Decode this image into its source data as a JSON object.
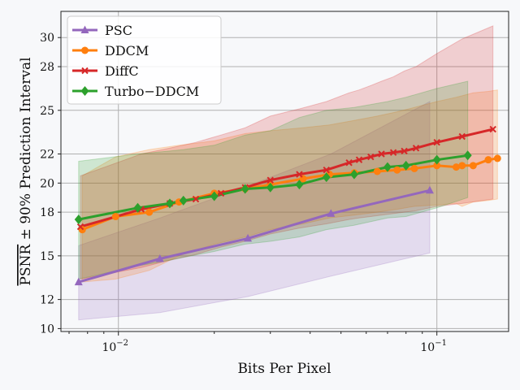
{
  "chart_data": {
    "type": "line",
    "title": "",
    "xlabel": "Bits Per Pixel",
    "ylabel": "PSNR ± 90% Prediction Interval",
    "ylabel_overlined_part": "PSNR",
    "ylabel_rest": " ± 90% Prediction Interval",
    "xscale": "log",
    "xlim": [
      0.0066,
      0.168
    ],
    "ylim": [
      9.8,
      31.8
    ],
    "x_ticks": [
      {
        "value": 0.01,
        "base": "10",
        "exp": "−2"
      },
      {
        "value": 0.1,
        "base": "10",
        "exp": "−1"
      }
    ],
    "y_ticks": [
      10,
      12,
      15,
      18,
      20,
      22,
      25,
      28,
      30
    ],
    "grid": true,
    "legend_position": "top-left",
    "series": [
      {
        "name": "PSC",
        "color": "#9467bd",
        "marker": "triangle",
        "x": [
          0.0075,
          0.0135,
          0.0255,
          0.0465,
          0.095
        ],
        "y": [
          13.2,
          14.8,
          16.2,
          17.9,
          19.5
        ],
        "lower": [
          10.6,
          11.1,
          12.2,
          13.6,
          15.2
        ],
        "upper": [
          15.7,
          17.6,
          19.8,
          22.0,
          25.6
        ]
      },
      {
        "name": "DDCM",
        "color": "#ff7f0e",
        "marker": "circle",
        "x": [
          0.0077,
          0.0098,
          0.0125,
          0.0155,
          0.02,
          0.025,
          0.03,
          0.038,
          0.046,
          0.055,
          0.065,
          0.075,
          0.085,
          0.1,
          0.115,
          0.12,
          0.13,
          0.145,
          0.155
        ],
        "y": [
          16.8,
          17.7,
          18.0,
          18.7,
          19.3,
          19.6,
          19.9,
          20.3,
          20.6,
          20.7,
          20.8,
          20.9,
          21.0,
          21.2,
          21.1,
          21.2,
          21.2,
          21.6,
          21.7
        ],
        "lower": [
          13.2,
          13.4,
          14.0,
          15.0,
          15.8,
          16.3,
          16.8,
          17.2,
          17.6,
          17.8,
          18.0,
          18.2,
          18.4,
          18.5,
          18.6,
          18.4,
          18.7,
          18.8,
          18.9
        ],
        "upper": [
          20.5,
          21.8,
          22.3,
          22.6,
          22.9,
          23.4,
          23.6,
          23.8,
          24.0,
          24.3,
          24.6,
          24.9,
          25.2,
          25.6,
          25.9,
          26.0,
          26.2,
          26.3,
          26.4
        ]
      },
      {
        "name": "DiffC",
        "color": "#d62728",
        "marker": "x",
        "x": [
          0.0076,
          0.0118,
          0.0145,
          0.0175,
          0.021,
          0.025,
          0.03,
          0.037,
          0.045,
          0.053,
          0.057,
          0.062,
          0.067,
          0.073,
          0.079,
          0.086,
          0.1,
          0.12,
          0.15
        ],
        "y": [
          17.0,
          18.2,
          18.6,
          18.9,
          19.3,
          19.7,
          20.2,
          20.6,
          20.9,
          21.4,
          21.6,
          21.8,
          22.0,
          22.1,
          22.2,
          22.4,
          22.8,
          23.2,
          23.7
        ],
        "lower": [
          13.4,
          14.2,
          14.7,
          15.1,
          15.6,
          16.0,
          16.5,
          16.9,
          17.2,
          17.5,
          17.6,
          17.7,
          17.8,
          17.9,
          18.0,
          18.1,
          18.4,
          18.6,
          18.9
        ],
        "upper": [
          20.5,
          22.0,
          22.4,
          22.8,
          23.3,
          23.8,
          24.6,
          25.1,
          25.6,
          26.2,
          26.4,
          26.7,
          27.0,
          27.3,
          27.7,
          28.0,
          28.9,
          29.9,
          30.8
        ]
      },
      {
        "name": "Turbo−DDCM",
        "color": "#2ca02c",
        "marker": "diamond",
        "x": [
          0.0075,
          0.0115,
          0.0145,
          0.016,
          0.02,
          0.025,
          0.03,
          0.037,
          0.045,
          0.055,
          0.07,
          0.08,
          0.1,
          0.125
        ],
        "y": [
          17.5,
          18.3,
          18.6,
          18.8,
          19.1,
          19.6,
          19.7,
          19.9,
          20.4,
          20.6,
          21.1,
          21.2,
          21.6,
          21.9
        ],
        "lower": [
          13.4,
          14.3,
          14.7,
          14.9,
          15.3,
          15.8,
          16.0,
          16.3,
          16.8,
          17.1,
          17.6,
          17.7,
          18.3,
          19.0
        ],
        "upper": [
          21.5,
          22.0,
          22.2,
          22.3,
          22.6,
          23.3,
          23.6,
          24.5,
          25.0,
          25.2,
          25.6,
          25.9,
          26.5,
          27.0
        ]
      }
    ]
  }
}
